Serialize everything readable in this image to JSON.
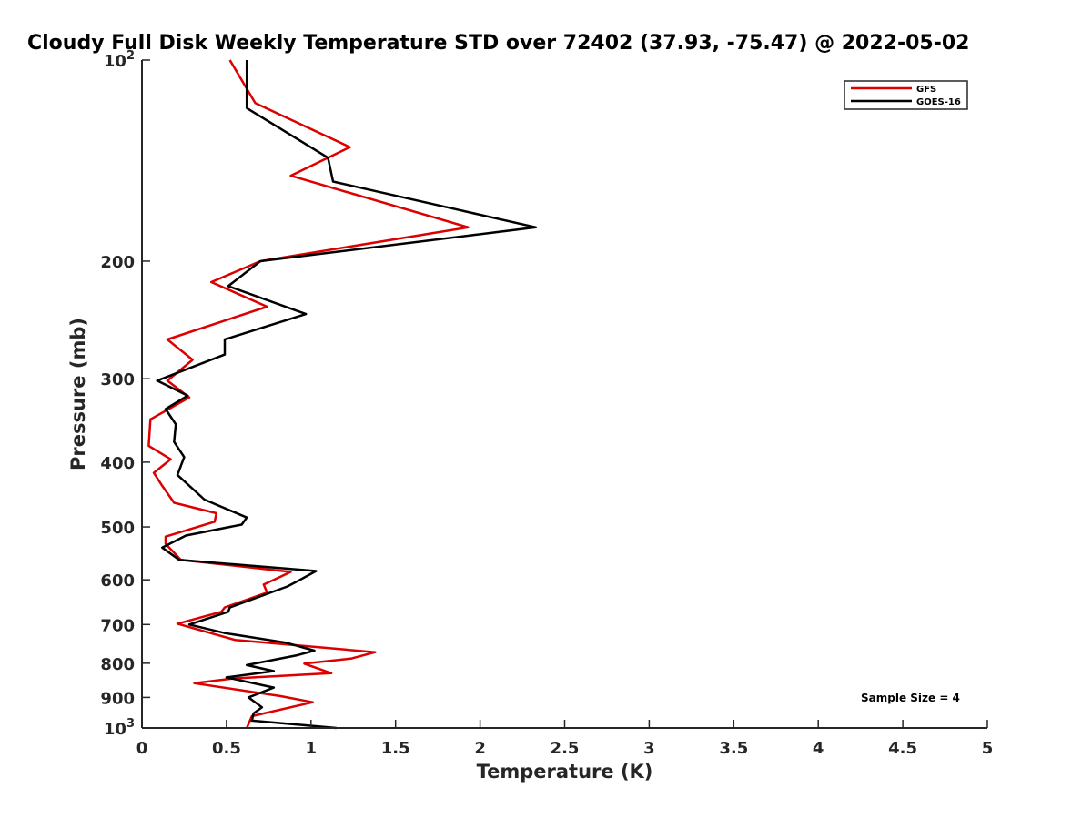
{
  "chart_data": {
    "type": "line",
    "title": "Cloudy Full Disk Weekly Temperature STD over 72402 (37.93, -75.47) @ 2022-05-02",
    "xlabel": "Temperature (K)",
    "ylabel": "Pressure (mb)",
    "xlim": [
      0,
      5
    ],
    "ylim": [
      100,
      1000
    ],
    "y_scale": "log",
    "y_reversed": true,
    "grid": false,
    "legend_position": "top-right",
    "x_ticks": [
      {
        "value": 0,
        "label": "0"
      },
      {
        "value": 0.5,
        "label": "0.5"
      },
      {
        "value": 1,
        "label": "1"
      },
      {
        "value": 1.5,
        "label": "1.5"
      },
      {
        "value": 2,
        "label": "2"
      },
      {
        "value": 2.5,
        "label": "2.5"
      },
      {
        "value": 3,
        "label": "3"
      },
      {
        "value": 3.5,
        "label": "3.5"
      },
      {
        "value": 4,
        "label": "4"
      },
      {
        "value": 4.5,
        "label": "4.5"
      },
      {
        "value": 5,
        "label": "5"
      }
    ],
    "y_ticks": [
      {
        "value": 100,
        "label": "10",
        "sup": "2"
      },
      {
        "value": 200,
        "label": "200",
        "sup": ""
      },
      {
        "value": 300,
        "label": "300",
        "sup": ""
      },
      {
        "value": 400,
        "label": "400",
        "sup": ""
      },
      {
        "value": 500,
        "label": "500",
        "sup": ""
      },
      {
        "value": 600,
        "label": "600",
        "sup": ""
      },
      {
        "value": 700,
        "label": "700",
        "sup": ""
      },
      {
        "value": 800,
        "label": "800",
        "sup": ""
      },
      {
        "value": 900,
        "label": "900",
        "sup": ""
      },
      {
        "value": 1000,
        "label": "10",
        "sup": "3"
      }
    ],
    "annotation": "Sample Size = 4",
    "series": [
      {
        "name": "GFS",
        "color": "#dd0000",
        "points": [
          [
            0.52,
            100
          ],
          [
            0.67,
            116
          ],
          [
            1.23,
            135
          ],
          [
            0.88,
            149
          ],
          [
            1.93,
            178
          ],
          [
            0.7,
            200
          ],
          [
            0.41,
            215
          ],
          [
            0.74,
            234
          ],
          [
            0.15,
            262
          ],
          [
            0.3,
            281
          ],
          [
            0.15,
            302
          ],
          [
            0.28,
            320
          ],
          [
            0.05,
            345
          ],
          [
            0.04,
            378
          ],
          [
            0.17,
            396
          ],
          [
            0.07,
            415
          ],
          [
            0.12,
            434
          ],
          [
            0.19,
            460
          ],
          [
            0.44,
            477
          ],
          [
            0.43,
            491
          ],
          [
            0.14,
            517
          ],
          [
            0.14,
            530
          ],
          [
            0.23,
            560
          ],
          [
            0.88,
            584
          ],
          [
            0.72,
            610
          ],
          [
            0.74,
            627
          ],
          [
            0.49,
            660
          ],
          [
            0.47,
            670
          ],
          [
            0.21,
            698
          ],
          [
            0.55,
            738
          ],
          [
            1.38,
            770
          ],
          [
            1.24,
            787
          ],
          [
            0.96,
            801
          ],
          [
            1.12,
            828
          ],
          [
            0.54,
            843
          ],
          [
            0.31,
            857
          ],
          [
            0.82,
            896
          ],
          [
            1.01,
            915
          ],
          [
            0.65,
            960
          ],
          [
            0.62,
            1000
          ]
        ]
      },
      {
        "name": "GOES-16",
        "color": "#000000",
        "points": [
          [
            0.62,
            100
          ],
          [
            0.62,
            118
          ],
          [
            1.1,
            140
          ],
          [
            1.13,
            152
          ],
          [
            2.33,
            178
          ],
          [
            0.7,
            200
          ],
          [
            0.51,
            218
          ],
          [
            0.97,
            240
          ],
          [
            0.49,
            262
          ],
          [
            0.49,
            276
          ],
          [
            0.09,
            302
          ],
          [
            0.27,
            318
          ],
          [
            0.14,
            333
          ],
          [
            0.2,
            351
          ],
          [
            0.19,
            373
          ],
          [
            0.25,
            393
          ],
          [
            0.21,
            418
          ],
          [
            0.37,
            455
          ],
          [
            0.62,
            484
          ],
          [
            0.59,
            496
          ],
          [
            0.26,
            515
          ],
          [
            0.12,
            537
          ],
          [
            0.22,
            560
          ],
          [
            1.03,
            582
          ],
          [
            0.93,
            601
          ],
          [
            0.86,
            614
          ],
          [
            0.52,
            660
          ],
          [
            0.51,
            670
          ],
          [
            0.28,
            700
          ],
          [
            0.49,
            721
          ],
          [
            0.85,
            745
          ],
          [
            1.02,
            766
          ],
          [
            0.91,
            779
          ],
          [
            0.62,
            805
          ],
          [
            0.78,
            822
          ],
          [
            0.5,
            840
          ],
          [
            0.78,
            870
          ],
          [
            0.63,
            900
          ],
          [
            0.71,
            931
          ],
          [
            0.66,
            951
          ],
          [
            0.65,
            975
          ],
          [
            1.15,
            1000
          ]
        ]
      }
    ]
  }
}
